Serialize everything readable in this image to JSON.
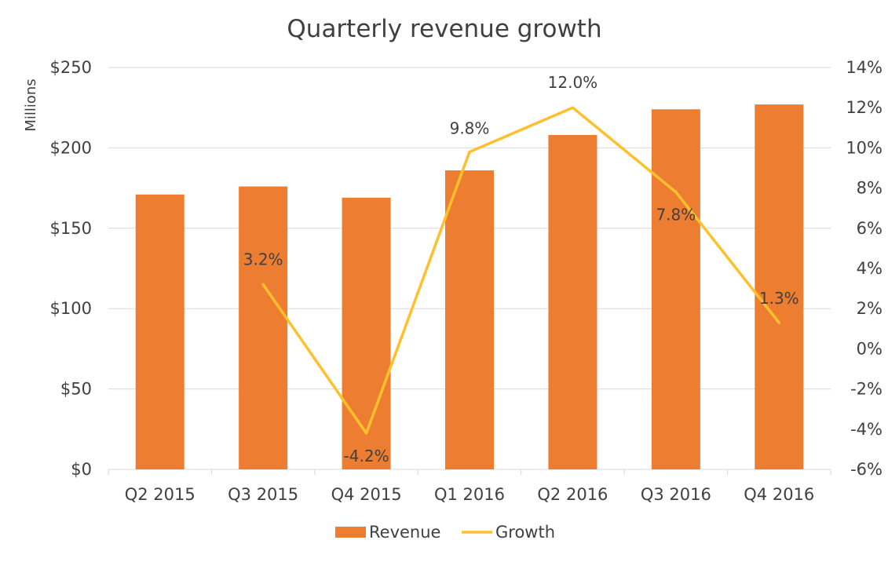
{
  "chart_data": {
    "type": "bar",
    "title": "Quarterly revenue growth",
    "categories": [
      "Q2 2015",
      "Q3 2015",
      "Q4 2015",
      "Q1 2016",
      "Q2 2016",
      "Q3 2016",
      "Q4 2016"
    ],
    "ylabel": "Millions",
    "ylim": [
      0,
      250
    ],
    "y_ticks": [
      "$0",
      "$50",
      "$100",
      "$150",
      "$200",
      "$250"
    ],
    "y2lim": [
      -6,
      14
    ],
    "y2_ticks": [
      "-6%",
      "-4%",
      "-2%",
      "0%",
      "2%",
      "4%",
      "6%",
      "8%",
      "10%",
      "12%",
      "14%"
    ],
    "grid": true,
    "legend_position": "bottom",
    "colors": {
      "revenue": "#ED7D31",
      "growth": "#FFC02E"
    },
    "series": [
      {
        "name": "Revenue",
        "type": "bar",
        "axis": "left",
        "values": [
          171,
          176,
          169,
          186,
          208,
          224,
          227
        ]
      },
      {
        "name": "Growth",
        "type": "line",
        "axis": "right",
        "values": [
          null,
          3.2,
          -4.2,
          9.8,
          12.0,
          7.8,
          1.3
        ],
        "labels": [
          "",
          "3.2%",
          "-4.2%",
          "9.8%",
          "12.0%",
          "7.8%",
          "1.3%"
        ]
      }
    ]
  }
}
